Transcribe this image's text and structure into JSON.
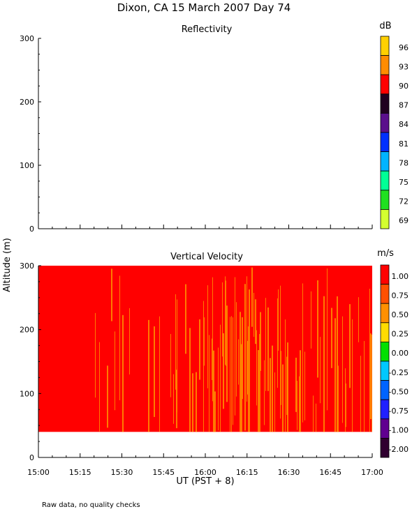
{
  "page": {
    "title": "Dixon, CA 15 March 2007  Day  74",
    "note": "Raw data, no quality checks",
    "ylabel": "Altitude (m)",
    "xlabel": "UT  (PST + 8)"
  },
  "chart_data": [
    {
      "type": "heatmap",
      "title": "Reflectivity",
      "colorbar_unit": "dB",
      "colorbar_labels": [
        "96",
        "93",
        "90",
        "87",
        "84",
        "81",
        "78",
        "75",
        "72",
        "69"
      ],
      "colorbar_colors": [
        "#ffd000",
        "#ff8c00",
        "#ff0000",
        "#200020",
        "#5a0f8c",
        "#0030ff",
        "#00b4ff",
        "#00ff96",
        "#20e020",
        "#d4ff30"
      ],
      "x_ticks": [
        "15:00",
        "15:15",
        "15:30",
        "15:45",
        "16:00",
        "16:15",
        "16:30",
        "16:45",
        "17:00"
      ],
      "y_ticks": [
        "0",
        "100",
        "200",
        "300"
      ],
      "ylim": [
        0,
        300
      ],
      "data": "no data plotted"
    },
    {
      "type": "heatmap",
      "title": "Vertical Velocity",
      "colorbar_unit": "m/s",
      "colorbar_labels": [
        "1.00",
        "0.75",
        "0.50",
        "0.25",
        "0.00",
        "-0.25",
        "-0.50",
        "-0.75",
        "-1.00",
        "-2.00"
      ],
      "colorbar_colors": [
        "#ff0000",
        "#ff5000",
        "#ff9000",
        "#ffdc00",
        "#00e000",
        "#00c8ff",
        "#0064ff",
        "#2020ff",
        "#600090",
        "#300030"
      ],
      "x_ticks": [
        "15:00",
        "15:15",
        "15:30",
        "15:45",
        "16:00",
        "16:15",
        "16:30",
        "16:45",
        "17:00"
      ],
      "x_range": [
        "15:00",
        "17:00"
      ],
      "y_ticks": [
        "0",
        "100",
        "200",
        "300"
      ],
      "ylim": [
        0,
        300
      ],
      "data_altitude_range": [
        40,
        300
      ],
      "dominant_value": "1.00",
      "streak_value": "0.50",
      "streak_density_by_time": [
        {
          "time": "15:00",
          "density": 0.02
        },
        {
          "time": "15:15",
          "density": 0.02
        },
        {
          "time": "15:30",
          "density": 0.06
        },
        {
          "time": "15:45",
          "density": 0.12
        },
        {
          "time": "16:00",
          "density": 0.3
        },
        {
          "time": "16:15",
          "density": 0.4
        },
        {
          "time": "16:30",
          "density": 0.3
        },
        {
          "time": "16:45",
          "density": 0.22
        },
        {
          "time": "17:00",
          "density": 0.22
        }
      ]
    }
  ]
}
